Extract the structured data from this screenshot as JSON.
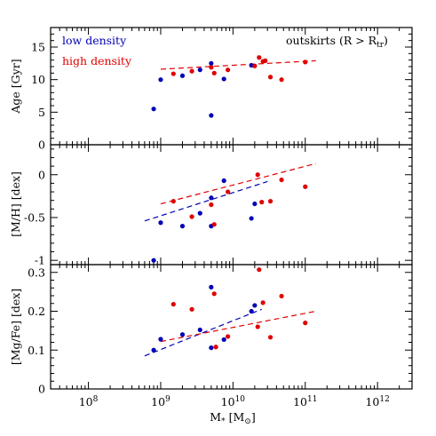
{
  "chart_data": [
    {
      "type": "scatter",
      "panel": "age",
      "ylabel": "Age [Gyr]",
      "annotation": "outskirts (R > R",
      "annotation_sub": "tr",
      "annotation_close": ")",
      "legend": [
        {
          "label": "low density",
          "color": "#0000b4"
        },
        {
          "label": "high density",
          "color": "#e00000"
        }
      ],
      "ylim": [
        0,
        18
      ],
      "yticks": [
        0,
        5,
        10,
        15
      ],
      "xscale": "log",
      "series": [
        {
          "name": "low density",
          "color": "#0000b4",
          "x": [
            800000000.0,
            1000000000.0,
            2000000000.0,
            3500000000.0,
            5000000000.0,
            5000000000.0,
            7500000000.0,
            18000000000.0
          ],
          "y": [
            5.5,
            10.0,
            10.6,
            11.5,
            12.5,
            4.5,
            10.1,
            12.2
          ]
        },
        {
          "name": "high density",
          "color": "#e00000",
          "x": [
            1500000000.0,
            2700000000.0,
            5000000000.0,
            5500000000.0,
            8500000000.0,
            20000000000.0,
            23000000000.0,
            26000000000.0,
            28000000000.0,
            33000000000.0,
            47000000000.0,
            100000000000.0
          ],
          "y": [
            10.9,
            11.3,
            11.9,
            11.0,
            11.5,
            12.1,
            13.4,
            12.8,
            12.9,
            10.4,
            10.0,
            12.7
          ]
        }
      ],
      "fits": [
        {
          "color": "#e00000",
          "x": [
            1000000000.0,
            140000000000.0
          ],
          "y": [
            11.6,
            12.9
          ]
        }
      ]
    },
    {
      "type": "scatter",
      "panel": "metallicity",
      "ylabel": "[M/H] [dex]",
      "ylim": [
        -1.05,
        0.35
      ],
      "yticks": [
        -1,
        -0.5,
        0
      ],
      "yticklabels": [
        "-1",
        "-0.5",
        "0"
      ],
      "xscale": "log",
      "series": [
        {
          "name": "low density",
          "color": "#0000b4",
          "x": [
            800000000.0,
            1000000000.0,
            2000000000.0,
            3500000000.0,
            5000000000.0,
            5000000000.0,
            7500000000.0,
            18000000000.0,
            20000000000.0
          ],
          "y": [
            -1.0,
            -0.56,
            -0.6,
            -0.45,
            -0.27,
            -0.6,
            -0.07,
            -0.51,
            -0.34
          ]
        },
        {
          "name": "high density",
          "color": "#e00000",
          "x": [
            1500000000.0,
            2700000000.0,
            5000000000.0,
            5500000000.0,
            8500000000.0,
            22000000000.0,
            25000000000.0,
            33000000000.0,
            47000000000.0,
            100000000000.0
          ],
          "y": [
            -0.31,
            -0.49,
            -0.35,
            -0.58,
            -0.2,
            0.0,
            -0.32,
            -0.31,
            -0.06,
            -0.14
          ]
        }
      ],
      "fits": [
        {
          "color": "#0000b4",
          "x": [
            600000000.0,
            30000000000.0
          ],
          "y": [
            -0.54,
            -0.08
          ]
        },
        {
          "color": "#e00000",
          "x": [
            1000000000.0,
            140000000000.0
          ],
          "y": [
            -0.34,
            0.13
          ]
        }
      ]
    },
    {
      "type": "scatter",
      "panel": "alpha",
      "ylabel": "[Mg/Fe] [dex]",
      "xlabel_main": "M",
      "xlabel_star": "*",
      "xlabel_unit": " [M",
      "xlabel_sun": "⊙",
      "xlabel_close": "]",
      "ylim": [
        0,
        0.32
      ],
      "yticks": [
        0,
        0.1,
        0.2,
        0.3
      ],
      "yticklabels": [
        "0",
        "0.1",
        "0.2",
        "0.3"
      ],
      "xscale": "log",
      "xlim": [
        30000000.0,
        3000000000000.0
      ],
      "xticks": [
        100000000.0,
        1000000000.0,
        10000000000.0,
        100000000000.0,
        1000000000000.0
      ],
      "xtick_base": "10",
      "xtick_exps": [
        "8",
        "9",
        "10",
        "11",
        "12"
      ],
      "series": [
        {
          "name": "low density",
          "color": "#0000b4",
          "x": [
            800000000.0,
            1000000000.0,
            2000000000.0,
            3500000000.0,
            5000000000.0,
            5000000000.0,
            7500000000.0,
            18000000000.0,
            20000000000.0
          ],
          "y": [
            0.1,
            0.128,
            0.14,
            0.152,
            0.262,
            0.106,
            0.127,
            0.2,
            0.215
          ]
        },
        {
          "name": "high density",
          "color": "#e00000",
          "x": [
            1500000000.0,
            2700000000.0,
            5500000000.0,
            5800000000.0,
            8500000000.0,
            22000000000.0,
            23000000000.0,
            26000000000.0,
            33000000000.0,
            47000000000.0,
            100000000000.0
          ],
          "y": [
            0.218,
            0.205,
            0.245,
            0.108,
            0.135,
            0.16,
            0.307,
            0.222,
            0.133,
            0.239,
            0.17
          ]
        }
      ],
      "fits": [
        {
          "color": "#0000b4",
          "x": [
            600000000.0,
            25000000000.0
          ],
          "y": [
            0.085,
            0.205
          ]
        },
        {
          "color": "#e00000",
          "x": [
            1000000000.0,
            140000000000.0
          ],
          "y": [
            0.122,
            0.2
          ]
        }
      ]
    }
  ]
}
